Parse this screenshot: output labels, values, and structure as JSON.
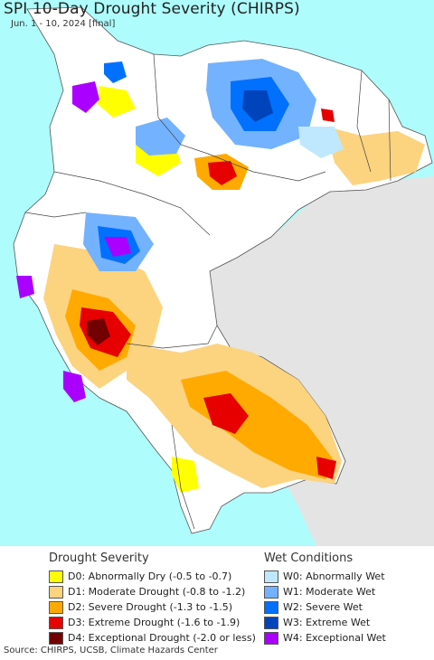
{
  "title": "SPI 10-Day Drought Severity (CHIRPS)",
  "subtitle": "Jun. 1 - 10, 2024 [final]",
  "colors": {
    "ocean": "#aefcfc",
    "land_neutral": "#ffffff",
    "outside_region": "#e4e4e4",
    "border": "#444444"
  },
  "legend": {
    "drought": {
      "heading": "Drought Severity",
      "items": [
        {
          "label": "D0: Abnormally Dry (-0.5 to -0.7)",
          "color": "#ffff00"
        },
        {
          "label": "D1: Moderate Drought (-0.8 to -1.2)",
          "color": "#fcd37f"
        },
        {
          "label": "D2: Severe Drought (-1.3 to -1.5)",
          "color": "#ffaa00"
        },
        {
          "label": "D3: Extreme Drought (-1.6 to -1.9)",
          "color": "#e60000"
        },
        {
          "label": "D4: Exceptional Drought (-2.0 or less)",
          "color": "#730000"
        }
      ]
    },
    "wet": {
      "heading": "Wet Conditions",
      "items": [
        {
          "label": "W0: Abnormally Wet",
          "color": "#bfe8ff"
        },
        {
          "label": "W1: Moderate Wet",
          "color": "#73b2ff"
        },
        {
          "label": "W2: Severe Wet",
          "color": "#0070ff"
        },
        {
          "label": "W3: Extreme Wet",
          "color": "#0044bb"
        },
        {
          "label": "W4: Exceptional Wet",
          "color": "#aa00ff"
        }
      ]
    }
  },
  "footer": "Source: CHIRPS, UCSB, Climate Hazards Center"
}
